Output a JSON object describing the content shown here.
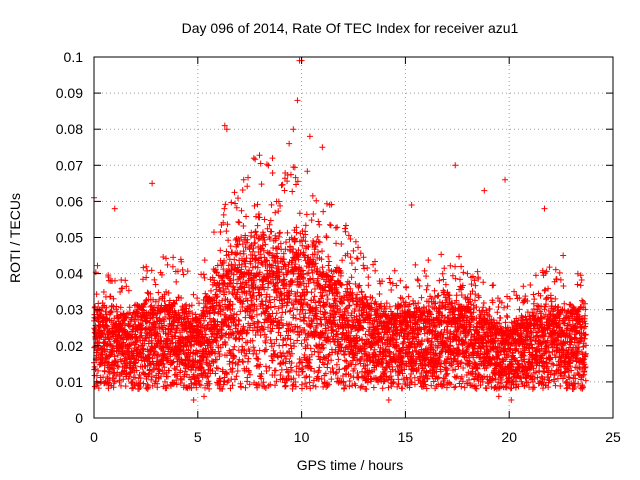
{
  "chart_data": {
    "type": "scatter",
    "title": "Day 096 of 2014, Rate Of TEC Index for receiver azu1",
    "xlabel": "GPS time / hours",
    "ylabel": "ROTI / TECUs",
    "xlim": [
      0,
      25
    ],
    "ylim": [
      0,
      0.1
    ],
    "x_ticks": [
      "0",
      "5",
      "10",
      "15",
      "20",
      "25"
    ],
    "y_ticks": [
      "0",
      "0.01",
      "0.02",
      "0.03",
      "0.04",
      "0.05",
      "0.06",
      "0.07",
      "0.08",
      "0.09",
      "0.1"
    ],
    "grid": true,
    "marker": "+",
    "series_color": "#ff0000",
    "series": [
      {
        "name": "ROTI",
        "x_range": [
          0.0,
          23.7
        ],
        "baseline_profile": [
          [
            0,
            0.021
          ],
          [
            1,
            0.019
          ],
          [
            2,
            0.02
          ],
          [
            3,
            0.021
          ],
          [
            4,
            0.022
          ],
          [
            5,
            0.018
          ],
          [
            6,
            0.027
          ],
          [
            7,
            0.032
          ],
          [
            8,
            0.035
          ],
          [
            9,
            0.032
          ],
          [
            10,
            0.034
          ],
          [
            11,
            0.03
          ],
          [
            12,
            0.026
          ],
          [
            13,
            0.022
          ],
          [
            14,
            0.02
          ],
          [
            15,
            0.02
          ],
          [
            16,
            0.021
          ],
          [
            17,
            0.022
          ],
          [
            18,
            0.021
          ],
          [
            19,
            0.018
          ],
          [
            20,
            0.016
          ],
          [
            21,
            0.019
          ],
          [
            22,
            0.021
          ],
          [
            23,
            0.02
          ],
          [
            23.7,
            0.019
          ]
        ],
        "notable_points": [
          [
            0.0,
            0.061
          ],
          [
            1.0,
            0.058
          ],
          [
            2.8,
            0.065
          ],
          [
            6.3,
            0.081
          ],
          [
            6.4,
            0.08
          ],
          [
            7.7,
            0.072
          ],
          [
            8.6,
            0.072
          ],
          [
            9.4,
            0.076
          ],
          [
            9.6,
            0.08
          ],
          [
            9.8,
            0.088
          ],
          [
            9.9,
            0.099
          ],
          [
            10.0,
            0.099
          ],
          [
            10.4,
            0.078
          ],
          [
            11.0,
            0.075
          ],
          [
            15.3,
            0.059
          ],
          [
            17.4,
            0.07
          ],
          [
            18.8,
            0.063
          ],
          [
            19.8,
            0.066
          ],
          [
            21.7,
            0.058
          ],
          [
            22.6,
            0.045
          ],
          [
            4.8,
            0.005
          ],
          [
            5.3,
            0.006
          ],
          [
            14.2,
            0.005
          ],
          [
            19.5,
            0.006
          ],
          [
            20.1,
            0.005
          ]
        ]
      }
    ]
  }
}
